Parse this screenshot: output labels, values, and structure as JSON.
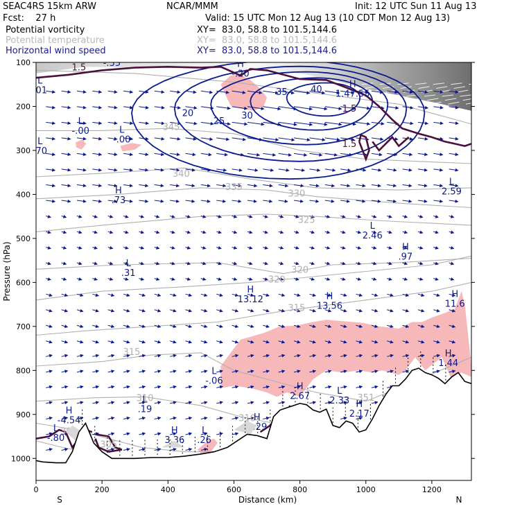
{
  "header": {
    "model": "SEAC4RS 15km ARW",
    "org": "NCAR/MMM",
    "init": "Init: 12 UTC Sun 11 Aug 13",
    "fcst": "Fcst:    27 h",
    "valid": "Valid: 15 UTC Mon 12 Aug 13 (10 CDT Mon 12 Aug 13)"
  },
  "legend": [
    {
      "name": "Potential vorticity",
      "xy": "XY=  83.0, 58.8 to 101.5,144.6",
      "color": "#000000"
    },
    {
      "name": "Potential temperature",
      "xy": "XY=  83.0, 58.8 to 101.5,144.6",
      "color": "#b8b8b8"
    },
    {
      "name": "Horizontal wind speed",
      "xy": "XY=  83.0, 58.8 to 101.5,144.6",
      "color": "#1a1a8c"
    }
  ],
  "colors": {
    "pv_fill": "#f6b8b8",
    "pv_line": "#4a0f3a",
    "wind": "#0b1a8c",
    "theta": "#b0b0b0",
    "terrain_shade": "#d8d8d8"
  },
  "chart_data": {
    "type": "cross-section",
    "xlabel": "Distance (km)",
    "ylabel": "Pressure (hPa)",
    "xlim": [
      0,
      1320
    ],
    "ylim": [
      1050,
      100
    ],
    "x_ticks": [
      0,
      200,
      400,
      600,
      800,
      1000,
      1200
    ],
    "y_ticks": [
      100,
      200,
      300,
      400,
      500,
      600,
      700,
      800,
      900,
      1000
    ],
    "x_end_labels": {
      "left": "S",
      "right": "N"
    },
    "terrain": {
      "x": [
        0,
        20,
        60,
        90,
        110,
        130,
        150,
        175,
        200,
        230,
        260,
        300,
        350,
        400,
        450,
        500,
        540,
        580,
        610,
        640,
        670,
        700,
        720,
        740,
        760,
        780,
        800,
        820,
        840,
        860,
        880,
        900,
        920,
        940,
        960,
        980,
        1000,
        1020,
        1040,
        1060,
        1080,
        1100,
        1120,
        1140,
        1160,
        1180,
        1200,
        1220,
        1240,
        1260,
        1280,
        1300,
        1320
      ],
      "p": [
        1005,
        1008,
        1010,
        1010,
        985,
        940,
        920,
        965,
        985,
        1000,
        1000,
        1000,
        998,
        998,
        995,
        990,
        985,
        975,
        960,
        945,
        948,
        955,
        905,
        890,
        885,
        880,
        875,
        878,
        890,
        895,
        888,
        925,
        930,
        915,
        920,
        940,
        935,
        910,
        880,
        855,
        835,
        835,
        820,
        800,
        795,
        805,
        810,
        818,
        830,
        815,
        805,
        825,
        830
      ]
    },
    "wind_speed_contours": [
      {
        "value": 20,
        "label_at": [
          460,
          222
        ]
      },
      {
        "value": 25,
        "label_at": [
          555,
          240
        ]
      },
      {
        "value": 30,
        "label_at": [
          640,
          228
        ]
      },
      {
        "value": 35,
        "label_at": [
          745,
          174
        ]
      },
      {
        "value": 40,
        "label_at": [
          850,
          168
        ]
      }
    ],
    "theta_labels": [
      {
        "value": "345",
        "x": 410,
        "p": 254
      },
      {
        "value": "340",
        "x": 440,
        "p": 360
      },
      {
        "value": "335",
        "x": 600,
        "p": 390
      },
      {
        "value": "330",
        "x": 790,
        "p": 405
      },
      {
        "value": "325",
        "x": 820,
        "p": 465
      },
      {
        "value": "320",
        "x": 730,
        "p": 600
      },
      {
        "value": "320",
        "x": 800,
        "p": 578
      },
      {
        "value": "315",
        "x": 790,
        "p": 665
      },
      {
        "value": "315",
        "x": 290,
        "p": 765
      },
      {
        "value": "310",
        "x": 330,
        "p": 870
      },
      {
        "value": "310",
        "x": 640,
        "p": 915
      },
      {
        "value": "305",
        "x": 220,
        "p": 975
      },
      {
        "value": "300",
        "x": 100,
        "p": 945
      },
      {
        "value": "351",
        "x": 1000,
        "p": 869
      }
    ],
    "pv_labels": [
      {
        "value": "1.5",
        "x": 130,
        "p": 118
      },
      {
        "value": "1.5",
        "x": 950,
        "p": 212
      },
      {
        "value": "1.5",
        "x": 950,
        "p": 292
      }
    ],
    "highs_lows": [
      {
        "kind": "L",
        "value": "-.35",
        "x": 230,
        "p": 108
      },
      {
        "kind": "L",
        "value": ".01",
        "x": 12,
        "p": 170
      },
      {
        "kind": "L",
        "value": "-.00",
        "x": 135,
        "p": 262
      },
      {
        "kind": "L",
        "value": "-.00",
        "x": 260,
        "p": 282
      },
      {
        "kind": "L",
        "value": ".70",
        "x": 12,
        "p": 308
      },
      {
        "kind": "H",
        "value": "-.20",
        "x": 620,
        "p": 132
      },
      {
        "kind": "H",
        "value": "1.47.55",
        "x": 960,
        "p": 178
      },
      {
        "kind": "H",
        "value": ".73",
        "x": 250,
        "p": 420
      },
      {
        "kind": "L",
        "value": "2.59",
        "x": 1260,
        "p": 400
      },
      {
        "kind": "L",
        "value": "2.46",
        "x": 1020,
        "p": 500
      },
      {
        "kind": "H",
        "value": ".97",
        "x": 1120,
        "p": 548
      },
      {
        "kind": "L",
        "value": ".31",
        "x": 280,
        "p": 585
      },
      {
        "kind": "H",
        "value": "13.12",
        "x": 650,
        "p": 645
      },
      {
        "kind": "H",
        "value": "13.56",
        "x": 890,
        "p": 660
      },
      {
        "kind": "H",
        "value": "11.6",
        "x": 1270,
        "p": 655
      },
      {
        "kind": "H",
        "value": "1.44",
        "x": 1250,
        "p": 790
      },
      {
        "kind": "L",
        "value": "-.06",
        "x": 540,
        "p": 830
      },
      {
        "kind": "H",
        "value": "2.67",
        "x": 800,
        "p": 865
      },
      {
        "kind": "L",
        "value": "2.33",
        "x": 920,
        "p": 875
      },
      {
        "kind": "H",
        "value": "2.17",
        "x": 980,
        "p": 905
      },
      {
        "kind": "L",
        "value": ".19",
        "x": 330,
        "p": 895
      },
      {
        "kind": "H",
        "value": "-4.54",
        "x": 100,
        "p": 920
      },
      {
        "kind": "H",
        "value": "3.29",
        "x": 670,
        "p": 935
      },
      {
        "kind": "H",
        "value": "3.36",
        "x": 420,
        "p": 965
      },
      {
        "kind": "L",
        "value": ".26",
        "x": 510,
        "p": 965
      },
      {
        "kind": "L",
        "value": "-.80",
        "x": 60,
        "p": 960
      }
    ]
  }
}
